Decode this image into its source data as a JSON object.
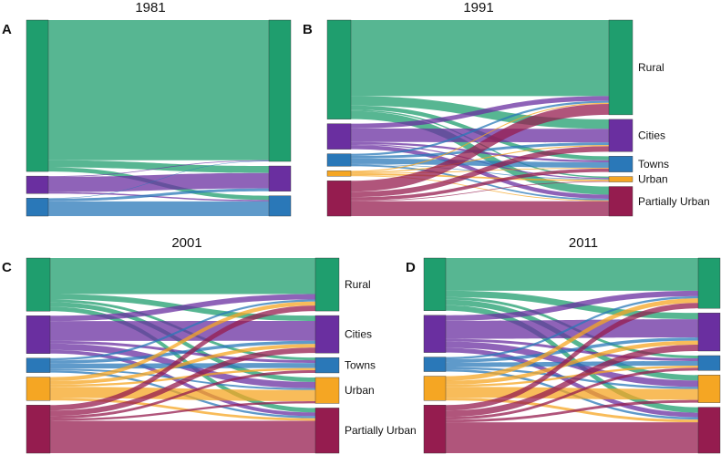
{
  "colors": {
    "Rural": "#1f9e6e",
    "Cities": "#6a2fa0",
    "Towns": "#2a78b8",
    "Urban": "#f5a623",
    "Partially Urban": "#951c4f"
  },
  "chart_data": [
    {
      "type": "sankey",
      "panel": "A",
      "title": "1981",
      "categories": [
        "Rural",
        "Cities",
        "Towns"
      ],
      "show_labels": false,
      "flows": [
        [
          1000,
          50,
          30
        ],
        [
          5,
          110,
          10
        ],
        [
          3,
          20,
          105
        ]
      ]
    },
    {
      "type": "sankey",
      "panel": "B",
      "title": "1991",
      "categories": [
        "Rural",
        "Cities",
        "Towns",
        "Urban",
        "Partially Urban"
      ],
      "show_labels": true,
      "flows": [
        [
          560,
          70,
          30,
          10,
          60
        ],
        [
          35,
          100,
          15,
          8,
          30
        ],
        [
          15,
          20,
          40,
          5,
          12
        ],
        [
          8,
          8,
          6,
          12,
          6
        ],
        [
          80,
          40,
          25,
          5,
          110
        ]
      ]
    },
    {
      "type": "sankey",
      "panel": "C",
      "title": "2001",
      "categories": [
        "Rural",
        "Cities",
        "Towns",
        "Urban",
        "Partially Urban"
      ],
      "show_labels": true,
      "flows": [
        [
          200,
          30,
          15,
          25,
          25
        ],
        [
          30,
          110,
          15,
          35,
          20
        ],
        [
          12,
          18,
          28,
          10,
          12
        ],
        [
          22,
          20,
          12,
          62,
          14
        ],
        [
          30,
          30,
          15,
          12,
          180
        ]
      ]
    },
    {
      "type": "sankey",
      "panel": "D",
      "title": "2011",
      "categories": [
        "Rural",
        "Cities",
        "Towns",
        "Urban",
        "Partially Urban"
      ],
      "show_labels": false,
      "flows": [
        [
          180,
          35,
          15,
          30,
          30
        ],
        [
          30,
          100,
          15,
          35,
          25
        ],
        [
          12,
          18,
          25,
          12,
          13
        ],
        [
          25,
          22,
          12,
          60,
          15
        ],
        [
          30,
          35,
          15,
          15,
          170
        ]
      ]
    }
  ]
}
